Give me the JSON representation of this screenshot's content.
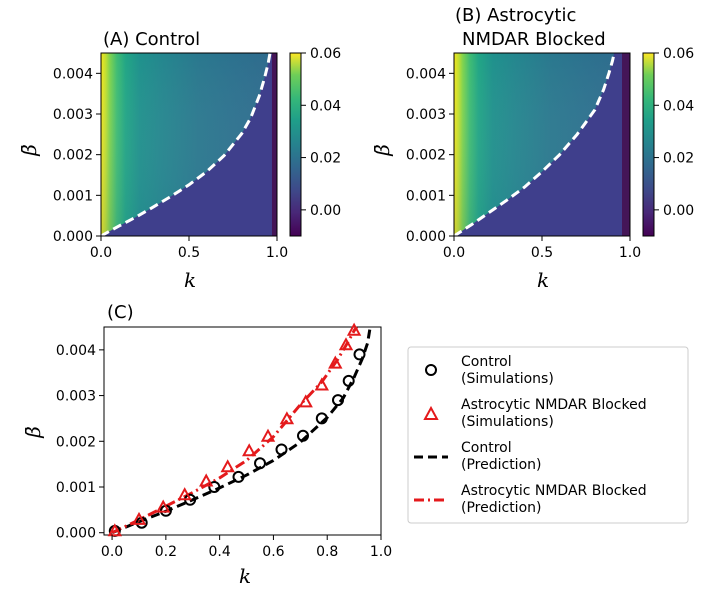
{
  "chart_data": [
    {
      "type": "heatmap",
      "title": "(A)    Control",
      "xlabel": "k",
      "ylabel": "β̄",
      "xlim": [
        0.0,
        1.0
      ],
      "ylim": [
        0.0,
        0.0045
      ],
      "xticks": [
        "0.0",
        "0.5",
        "1.0"
      ],
      "yticks": [
        "0.000",
        "0.001",
        "0.002",
        "0.003",
        "0.004"
      ],
      "colorbar": {
        "range": [
          -0.01,
          0.06
        ],
        "ticks": [
          "0.00",
          "0.02",
          "0.04",
          "0.06"
        ]
      },
      "boundary_curve": {
        "style": "white-dashed",
        "k": [
          0.0,
          0.1,
          0.2,
          0.3,
          0.4,
          0.5,
          0.6,
          0.7,
          0.8,
          0.85,
          0.9,
          0.93,
          0.95,
          0.96
        ],
        "beta": [
          0.0,
          0.00024,
          0.00047,
          0.00072,
          0.00098,
          0.00126,
          0.00158,
          0.00198,
          0.00252,
          0.0029,
          0.00345,
          0.0039,
          0.00425,
          0.0045
        ]
      }
    },
    {
      "type": "heatmap",
      "title_line1": "(B)   Astrocytic",
      "title_line2": "NMDAR Blocked",
      "xlabel": "k",
      "ylabel": "β̄",
      "xlim": [
        0.0,
        1.0
      ],
      "ylim": [
        0.0,
        0.0045
      ],
      "xticks": [
        "0.0",
        "0.5",
        "1.0"
      ],
      "yticks": [
        "0.000",
        "0.001",
        "0.002",
        "0.003",
        "0.004"
      ],
      "colorbar": {
        "range": [
          -0.01,
          0.06
        ],
        "ticks": [
          "0.00",
          "0.02",
          "0.04",
          "0.06"
        ]
      },
      "boundary_curve": {
        "style": "white-dashed",
        "k": [
          0.0,
          0.1,
          0.2,
          0.3,
          0.4,
          0.5,
          0.6,
          0.7,
          0.8,
          0.85,
          0.88,
          0.9,
          0.91
        ],
        "beta": [
          0.0,
          0.00028,
          0.00058,
          0.00088,
          0.0012,
          0.00158,
          0.002,
          0.0025,
          0.0031,
          0.0036,
          0.004,
          0.0043,
          0.0045
        ]
      }
    },
    {
      "type": "line",
      "title": "(C)",
      "xlabel": "k",
      "ylabel": "β̄",
      "xlim": [
        -0.03,
        1.0
      ],
      "ylim": [
        -5e-05,
        0.0045
      ],
      "xticks": [
        "0.0",
        "0.2",
        "0.4",
        "0.6",
        "0.8",
        "1.0"
      ],
      "yticks": [
        "0.000",
        "0.001",
        "0.002",
        "0.003",
        "0.004"
      ],
      "series": [
        {
          "name": "Control\n(Simulations)",
          "style": "black-circles",
          "x": [
            0.01,
            0.11,
            0.2,
            0.29,
            0.38,
            0.47,
            0.55,
            0.63,
            0.71,
            0.78,
            0.84,
            0.88,
            0.92
          ],
          "y": [
            4e-05,
            0.00022,
            0.00048,
            0.00072,
            0.001,
            0.00122,
            0.00152,
            0.00182,
            0.00212,
            0.0025,
            0.0029,
            0.00332,
            0.0039
          ]
        },
        {
          "name": "Astrocytic NMDAR Blocked\n(Simulations)",
          "style": "red-triangles",
          "x": [
            0.01,
            0.1,
            0.19,
            0.27,
            0.35,
            0.43,
            0.51,
            0.58,
            0.65,
            0.72,
            0.78,
            0.83,
            0.87,
            0.9
          ],
          "y": [
            3e-05,
            0.00028,
            0.00055,
            0.00082,
            0.00112,
            0.00143,
            0.00178,
            0.0021,
            0.00248,
            0.00285,
            0.00322,
            0.0037,
            0.0041,
            0.00442
          ]
        },
        {
          "name": "Control\n(Prediction)",
          "style": "black-dashed",
          "x": [
            0.0,
            0.1,
            0.2,
            0.3,
            0.4,
            0.5,
            0.6,
            0.7,
            0.8,
            0.86,
            0.9,
            0.93,
            0.95,
            0.96
          ],
          "y": [
            0.0,
            0.00024,
            0.00047,
            0.00072,
            0.00098,
            0.00126,
            0.00158,
            0.00198,
            0.00252,
            0.00295,
            0.0034,
            0.0038,
            0.00415,
            0.0045
          ]
        },
        {
          "name": "Astrocytic NMDAR Blocked\n(Prediction)",
          "style": "red-dashdot",
          "x": [
            0.0,
            0.1,
            0.2,
            0.3,
            0.4,
            0.5,
            0.6,
            0.7,
            0.78,
            0.84,
            0.88,
            0.9,
            0.91
          ],
          "y": [
            0.0,
            0.00028,
            0.00058,
            0.00088,
            0.0012,
            0.00158,
            0.0021,
            0.0028,
            0.0033,
            0.0038,
            0.0042,
            0.00442,
            0.0045
          ]
        }
      ],
      "legend": {
        "position": "right",
        "entries": [
          {
            "line1": "Control",
            "line2": "(Simulations)"
          },
          {
            "line1": "Astrocytic NMDAR Blocked",
            "line2": "(Simulations)"
          },
          {
            "line1": "Control",
            "line2": "(Prediction)"
          },
          {
            "line1": "Astrocytic NMDAR Blocked",
            "line2": "(Prediction)"
          }
        ]
      }
    }
  ]
}
